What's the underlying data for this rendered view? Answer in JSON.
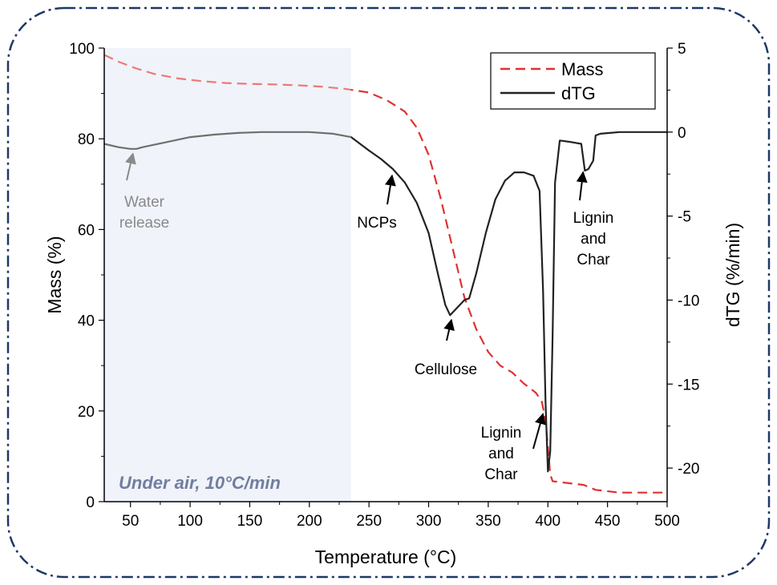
{
  "chart_data": {
    "type": "line",
    "title": "",
    "xlabel": "Temperature (°C)",
    "ylabel": "Mass (%)",
    "y2label": "dTG (%/min)",
    "xlim": [
      28,
      500
    ],
    "ylim": [
      0,
      100
    ],
    "y2lim": [
      -22,
      5
    ],
    "x_ticks": [
      50,
      100,
      150,
      200,
      250,
      300,
      350,
      400,
      450,
      500
    ],
    "y_ticks": [
      0,
      20,
      40,
      60,
      80,
      100
    ],
    "y2_ticks": [
      5,
      0,
      -5,
      -10,
      -15,
      -20
    ],
    "y2_tick_labels": [
      "5",
      "0",
      "-5",
      "-10",
      "-15",
      "-20"
    ],
    "grid": false,
    "legend": {
      "position": "top-right",
      "entries": [
        "Mass",
        "dTG"
      ]
    },
    "colors": {
      "mass": "#e03131",
      "dtg": "#222222",
      "shade": "#e9edf8",
      "region_label": "#263a6b",
      "frame": "#1f3866"
    },
    "shaded_region": {
      "x": [
        28,
        235
      ],
      "label": "Under air, 10°C/min"
    },
    "series": [
      {
        "name": "Mass",
        "axis": "left",
        "style": "dashed",
        "x": [
          28,
          40,
          55,
          70,
          90,
          110,
          130,
          150,
          170,
          190,
          210,
          230,
          250,
          265,
          280,
          290,
          300,
          310,
          320,
          330,
          340,
          350,
          360,
          370,
          380,
          390,
          395,
          398,
          400,
          402,
          404,
          420,
          430,
          440,
          460,
          480,
          500
        ],
        "y": [
          98.5,
          97,
          95.5,
          94.3,
          93.3,
          92.7,
          92.3,
          92.1,
          92,
          91.8,
          91.5,
          91,
          90.2,
          88.5,
          86,
          82.5,
          76.5,
          67,
          56,
          45,
          38,
          33,
          30,
          28.5,
          26,
          24,
          22,
          18,
          12,
          6,
          4.5,
          4,
          3.7,
          2.6,
          2,
          2,
          2
        ]
      },
      {
        "name": "dTG",
        "axis": "right",
        "style": "solid",
        "x": [
          28,
          40,
          50,
          55,
          60,
          80,
          100,
          120,
          140,
          160,
          180,
          200,
          220,
          235,
          250,
          260,
          270,
          280,
          290,
          300,
          308,
          314,
          318,
          322,
          326,
          330,
          334,
          340,
          348,
          356,
          364,
          372,
          380,
          388,
          393,
          396,
          398,
          400,
          402,
          404,
          406,
          410,
          420,
          428,
          431,
          434,
          438,
          440,
          444,
          460,
          480,
          500
        ],
        "y": [
          -0.7,
          -0.9,
          -1.0,
          -1.0,
          -0.9,
          -0.6,
          -0.3,
          -0.15,
          -0.05,
          0,
          0,
          0,
          -0.1,
          -0.3,
          -1.1,
          -1.6,
          -2.2,
          -3.0,
          -4.2,
          -6.0,
          -8.5,
          -10.3,
          -10.9,
          -10.6,
          -10.3,
          -10.0,
          -9.9,
          -8.4,
          -6.0,
          -4.0,
          -2.9,
          -2.4,
          -2.4,
          -2.6,
          -3.5,
          -9.5,
          -16.0,
          -20.2,
          -19.0,
          -12.0,
          -3.0,
          -0.5,
          -0.6,
          -0.7,
          -2.3,
          -2.2,
          -1.7,
          -0.2,
          -0.1,
          0,
          0,
          0
        ]
      }
    ],
    "annotations": [
      {
        "text": "Water release",
        "lines": [
          "Water",
          "release"
        ],
        "color": "grey",
        "arrow_to": {
          "x": 53,
          "y2": -1.0
        }
      },
      {
        "text": "NCPs",
        "lines": [
          "NCPs"
        ],
        "arrow_to": {
          "x": 270,
          "y2": -2.3
        }
      },
      {
        "text": "Cellulose",
        "lines": [
          "Cellulose"
        ],
        "arrow_to": {
          "x": 320,
          "y2": -10.9
        }
      },
      {
        "text": "Lignin and Char",
        "lines": [
          "Lignin",
          "and",
          "Char"
        ],
        "arrow_to": {
          "x": 397,
          "y2": -16.5
        }
      },
      {
        "text": "Lignin and Char",
        "lines": [
          "Lignin",
          "and",
          "Char"
        ],
        "arrow_to": {
          "x": 430,
          "y2": -2.1
        }
      }
    ]
  }
}
